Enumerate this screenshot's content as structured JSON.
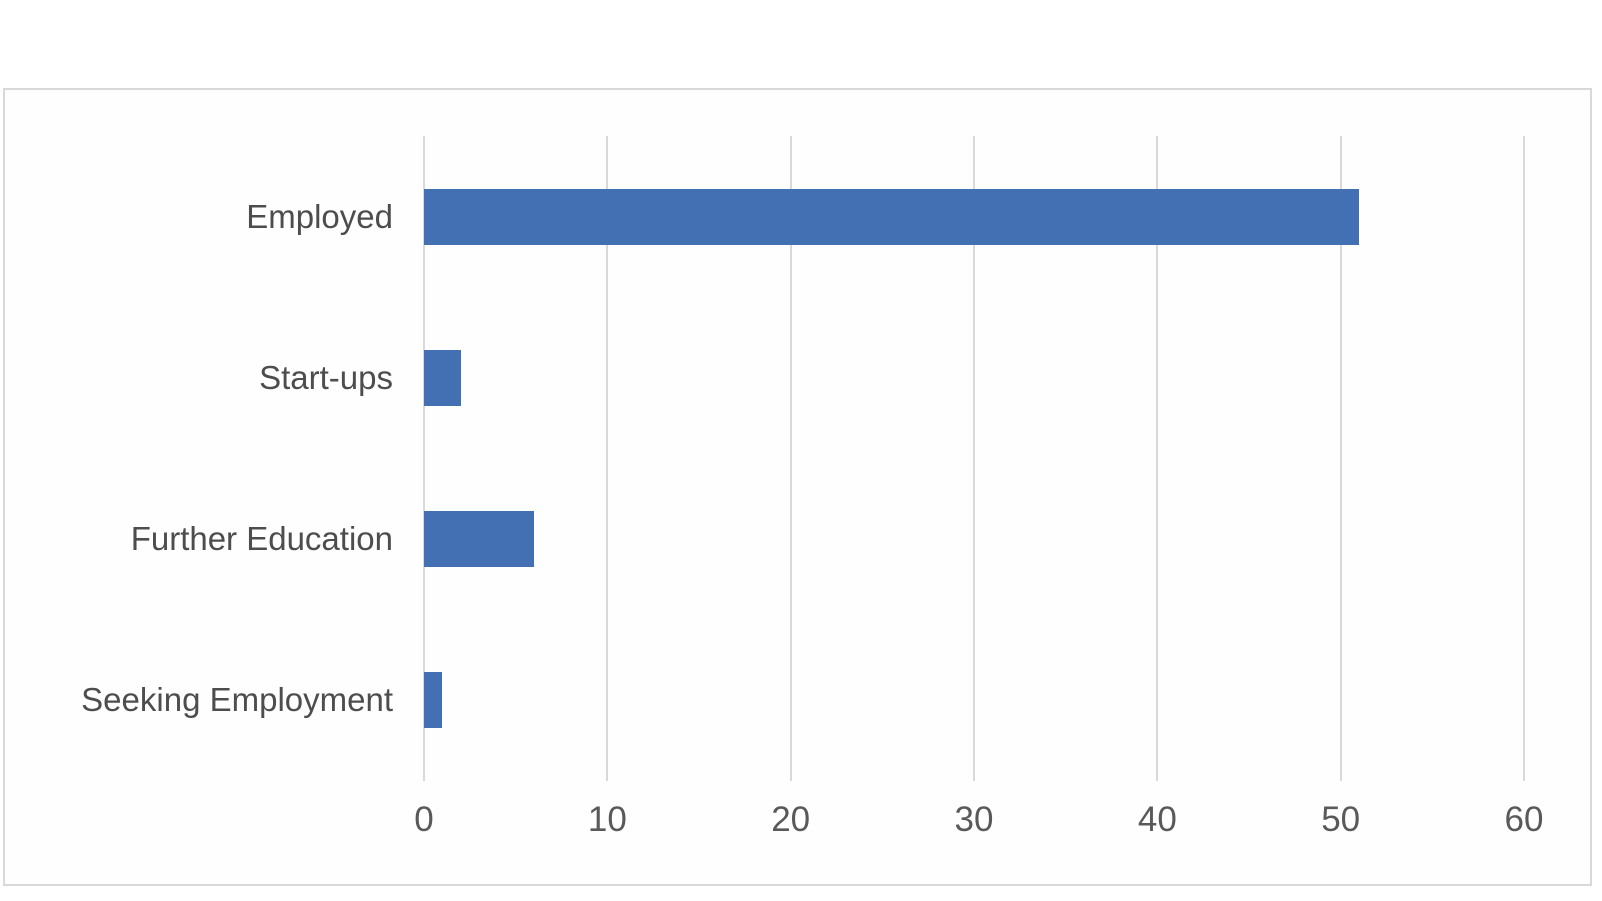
{
  "chart_data": {
    "type": "bar",
    "orientation": "horizontal",
    "title": "",
    "categories": [
      "Employed",
      "Start-ups",
      "Further Education",
      "Seeking Employment"
    ],
    "values": [
      51,
      2,
      6,
      1
    ],
    "xlabel": "",
    "ylabel": "",
    "xlim": [
      0,
      60
    ],
    "xticks": [
      0,
      10,
      20,
      30,
      40,
      50,
      60
    ],
    "grid": "vertical-gridlines-on",
    "legend": "none",
    "bar_color": "#4270b2",
    "gridline_color": "#d9d9d9",
    "frame_border_color": "#d9d9d9",
    "category_label_color": "#4d4d4d",
    "tick_label_color": "#595959"
  }
}
